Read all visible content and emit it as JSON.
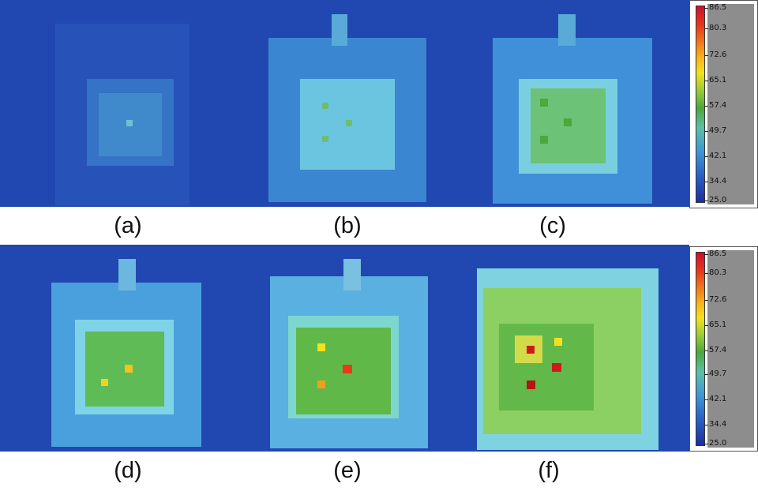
{
  "captions": {
    "a": "(a)",
    "b": "(b)",
    "c": "(c)",
    "d": "(d)",
    "e": "(e)",
    "f": "(f)"
  },
  "colorbar": {
    "ticks": [
      "86.5",
      "80.3",
      "72.6",
      "65.1",
      "57.4",
      "49.7",
      "42.1",
      "34.4",
      "25.0"
    ]
  },
  "panels": [
    {
      "id": "a",
      "center_level": 0.3,
      "hot_level": 0.0
    },
    {
      "id": "b",
      "center_level": 0.45,
      "hot_level": 0.25
    },
    {
      "id": "c",
      "center_level": 0.6,
      "hot_level": 0.35
    },
    {
      "id": "d",
      "center_level": 0.66,
      "hot_level": 0.75
    },
    {
      "id": "e",
      "center_level": 0.72,
      "hot_level": 0.85
    },
    {
      "id": "f",
      "center_level": 0.8,
      "hot_level": 1.0
    }
  ],
  "colors": {
    "background_blue": "#2147b0",
    "outer_blue": "#3f8fd8",
    "light_cyan": "#7fd3e6",
    "green": "#4aa83c",
    "yellow": "#f3e21c",
    "red": "#d01a1a"
  }
}
